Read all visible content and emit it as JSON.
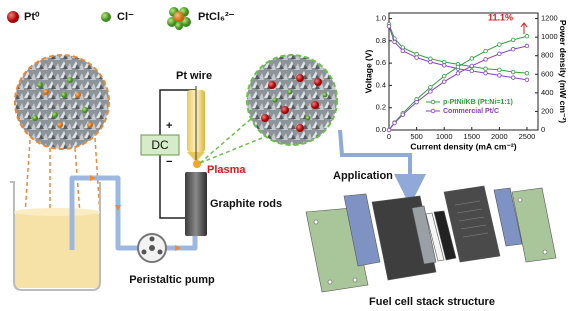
{
  "legend": [
    "Pt⁰",
    "Cl⁻",
    "PtCl₆²⁻"
  ],
  "labels": {
    "pt_wire": "Pt wire",
    "dc": "DC",
    "plus": "+",
    "minus": "−",
    "plasma": "Plasma",
    "graphite_rods": "Graphite rods",
    "pump": "Peristaltic pump",
    "application": "Application",
    "stack": "Fuel cell stack structure"
  },
  "chart": {
    "type": "line",
    "xlabel": "Current density (mA cm⁻²)",
    "ylabel": "Voltage (V)",
    "y2label": "Power density (mW cm⁻²)",
    "annotation": "11.1%",
    "x": [
      0,
      100,
      250,
      500,
      750,
      1000,
      1250,
      1500,
      1750,
      2000,
      2250,
      2500
    ],
    "xlim": [
      0,
      2700
    ],
    "xticks": [
      0,
      500,
      1000,
      1500,
      2000,
      2500
    ],
    "ylim": [
      0,
      1.05
    ],
    "yticks": [
      {
        "value": 0,
        "label": "0.0"
      },
      {
        "value": 0.2,
        "label": "0.2"
      },
      {
        "value": 0.4,
        "label": "0.4"
      },
      {
        "value": 0.6,
        "label": "0.6"
      },
      {
        "value": 0.8,
        "label": "0.8"
      },
      {
        "value": 1,
        "label": "1.0"
      }
    ],
    "y2lim": [
      0,
      1260
    ],
    "y2ticks": [
      0,
      200,
      400,
      600,
      800,
      1000,
      1200
    ],
    "series": [
      {
        "name": "p-PtNi/KB (Pt:Ni=1:1)",
        "color": "#2e9e3e",
        "values": [
          0.95,
          0.82,
          0.74,
          0.68,
          0.64,
          0.61,
          0.59,
          0.57,
          0.55,
          0.54,
          0.52,
          0.51
        ]
      },
      {
        "name": "Commercial Pt/C",
        "color": "#8a3fbf",
        "values": [
          0.93,
          0.79,
          0.71,
          0.65,
          0.61,
          0.58,
          0.55,
          0.53,
          0.51,
          0.49,
          0.47,
          0.45
        ]
      },
      {
        "color": "#2e9e3e",
        "axis": "y2",
        "values": [
          0,
          80,
          180,
          330,
          460,
          580,
          680,
          770,
          850,
          920,
          970,
          1010
        ]
      },
      {
        "color": "#8a3fbf",
        "axis": "y2",
        "values": [
          0,
          75,
          165,
          300,
          415,
          520,
          610,
          690,
          760,
          820,
          870,
          905
        ]
      }
    ]
  }
}
